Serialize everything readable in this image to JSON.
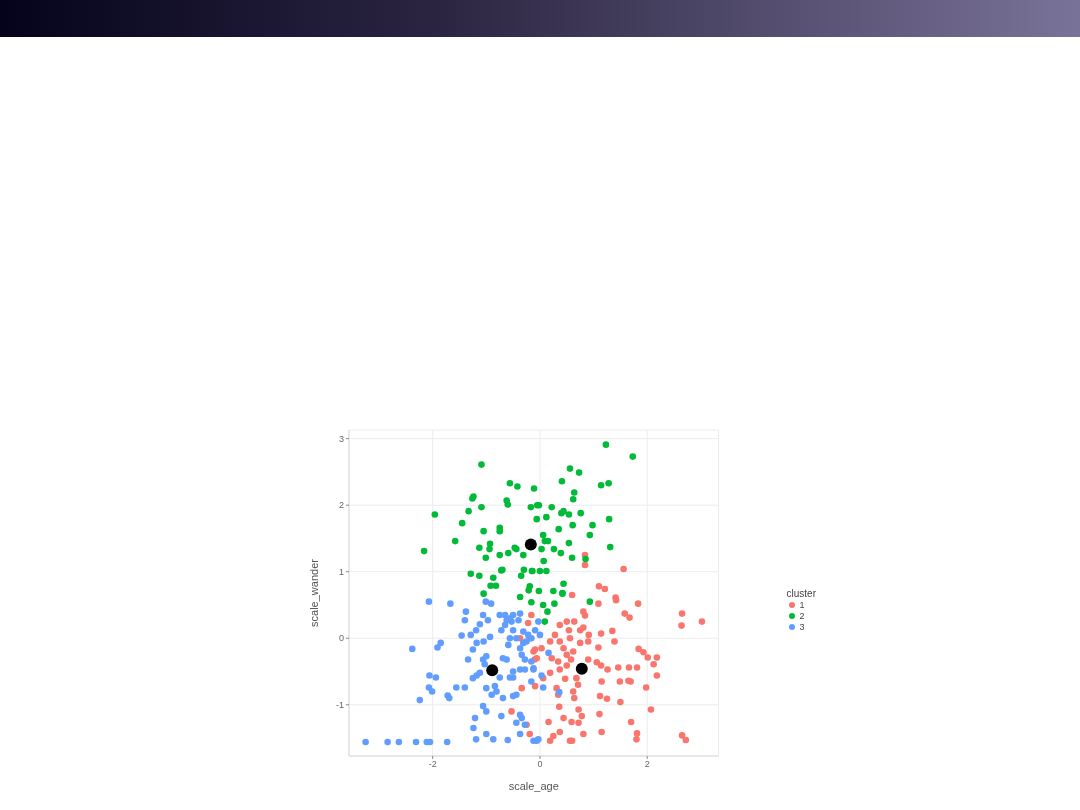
{
  "chart_data": {
    "type": "scatter",
    "xlabel": "scale_age",
    "ylabel": "scale_wander",
    "legend_title": "cluster",
    "legend": "right",
    "grid": true,
    "marker": "circle",
    "xlim": [
      -3.56,
      3.33
    ],
    "ylim": [
      -1.77,
      3.13
    ],
    "xticks": [
      -2,
      0,
      2
    ],
    "yticks": [
      -1,
      0,
      1,
      2,
      3
    ],
    "series": [
      {
        "name": "1",
        "color": "#f8766d",
        "x": [
          0.84,
          0.84,
          1.56,
          1.1,
          1.21,
          0.6,
          1.41,
          1.09,
          1.42,
          1.83,
          0.81,
          0.84,
          1.58,
          1.67,
          2.65,
          2.64,
          3.02,
          0.5,
          0.64,
          0.37,
          0.54,
          0.75,
          0.81,
          1.14,
          1.35,
          0.91,
          1.39,
          1.09,
          1.84,
          1.93,
          2.01,
          2.18,
          2.12,
          2.18,
          1.46,
          1.66,
          1.81,
          1.26,
          1.14,
          1.06,
          0.9,
          0.58,
          0.5,
          0.37,
          0.47,
          0.68,
          0.71,
          1.15,
          1.49,
          1.65,
          1.69,
          1.98,
          1.5,
          1.25,
          1.12,
          0.64,
          0.62,
          0.31,
          0.34,
          0.36,
          0.72,
          0.78,
          0.59,
          0.72,
          0.44,
          1.11,
          2.07,
          1.7,
          0.16,
          0.37,
          0.25,
          0.19,
          0.56,
          0.6,
          0.81,
          1.15,
          1.81,
          1.8,
          2.65,
          2.72,
          -0.12,
          -0.06,
          0.03,
          0.19,
          0.28,
          0.37,
          0.44,
          0.5,
          0.62,
          0.19,
          0.06,
          0.22,
          0.34,
          0.56,
          0.75,
          0.9,
          -0.16,
          -0.22,
          -0.37,
          -0.09,
          -0.1,
          -0.34,
          -0.09,
          -0.53,
          -0.25,
          -0.19
        ],
        "values": [
          1.25,
          1.1,
          1.04,
          0.78,
          0.74,
          0.65,
          0.61,
          0.52,
          0.57,
          0.52,
          0.4,
          0.34,
          0.37,
          0.31,
          0.37,
          0.19,
          0.25,
          0.25,
          0.25,
          0.2,
          0.12,
          0.12,
          0.16,
          0.07,
          0.11,
          0.05,
          -0.05,
          -0.14,
          -0.16,
          -0.21,
          -0.29,
          -0.29,
          -0.39,
          -0.56,
          -0.44,
          -0.44,
          -0.44,
          -0.47,
          -0.41,
          -0.36,
          -0.32,
          -0.32,
          -0.41,
          -0.47,
          -0.61,
          -0.6,
          -0.7,
          -0.65,
          -0.65,
          -0.64,
          -0.65,
          -0.74,
          -0.96,
          -0.91,
          -0.87,
          -0.9,
          -0.8,
          -0.75,
          -0.85,
          -1.03,
          -1.07,
          -1.17,
          -1.26,
          -1.27,
          -1.2,
          -1.14,
          -1.07,
          -1.26,
          -1.26,
          -1.41,
          -1.47,
          -1.54,
          -1.54,
          -1.54,
          -1.44,
          -1.41,
          -1.43,
          -1.52,
          -1.46,
          -1.53,
          -0.2,
          -0.3,
          -0.15,
          -0.05,
          0.05,
          -0.05,
          -0.15,
          -0.25,
          -0.2,
          -0.52,
          -0.6,
          -0.3,
          -0.35,
          0.0,
          -0.07,
          -0.05,
          0.35,
          0.23,
          0.0,
          -0.17,
          -0.32,
          -0.75,
          -0.72,
          -1.1,
          -1.3,
          -1.44
        ]
      },
      {
        "name": "2",
        "color": "#00ba38",
        "x": [
          -1.09,
          -1.96,
          -2.16,
          -1.58,
          -1.45,
          -1.33,
          -1.26,
          -1.24,
          -1.09,
          -1.05,
          -1.13,
          -1.01,
          -0.93,
          -0.94,
          -0.75,
          -0.75,
          -0.62,
          -0.6,
          -0.56,
          -0.42,
          -0.11,
          -0.17,
          -0.06,
          -0.05,
          -0.31,
          -0.47,
          -0.44,
          -0.59,
          -0.75,
          -0.72,
          -0.7,
          -0.87,
          -1.29,
          -1.13,
          -0.92,
          -0.82,
          -1.05,
          -0.3,
          -0.15,
          -0.35,
          -0.19,
          -0.21,
          -0.37,
          1.23,
          1.73,
          0.56,
          0.73,
          0.41,
          1.14,
          1.28,
          0.64,
          0.62,
          -0.02,
          0.22,
          0.44,
          0.4,
          0.54,
          0.76,
          0.12,
          0.61,
          0.98,
          1.29,
          0.35,
          0.93,
          0.06,
          0.09,
          0.15,
          0.03,
          0.26,
          0.39,
          0.54,
          0.6,
          1.31,
          0.85,
          0.07,
          -0.14,
          0.0,
          0.12,
          0.44,
          0.42,
          0.25,
          -0.02,
          0.42,
          -0.16,
          0.06,
          0.27,
          0.14,
          0.93,
          0.09
        ],
        "values": [
          2.61,
          1.86,
          1.31,
          1.46,
          1.73,
          1.91,
          2.1,
          2.13,
          1.97,
          1.61,
          1.36,
          1.21,
          1.42,
          1.34,
          1.66,
          1.61,
          2.07,
          2.01,
          2.33,
          2.28,
          2.25,
          1.97,
          1.79,
          2.0,
          1.25,
          1.36,
          1.34,
          1.28,
          1.25,
          1.02,
          1.03,
          0.91,
          0.97,
          0.94,
          0.79,
          0.79,
          0.67,
          1.03,
          1.01,
          0.94,
          0.78,
          0.72,
          0.62,
          2.91,
          2.73,
          2.55,
          2.49,
          2.36,
          2.3,
          2.33,
          2.19,
          2.09,
          2.0,
          1.97,
          1.91,
          1.88,
          1.86,
          1.88,
          1.82,
          1.7,
          1.7,
          1.79,
          1.64,
          1.55,
          1.55,
          1.46,
          1.46,
          1.34,
          1.34,
          1.28,
          1.43,
          1.21,
          1.37,
          1.19,
          1.16,
          1.01,
          1.01,
          1.01,
          0.82,
          0.68,
          0.71,
          0.71,
          0.67,
          0.54,
          0.5,
          0.52,
          0.4,
          0.55,
          0.25
        ]
      },
      {
        "name": "3",
        "color": "#619cff",
        "x": [
          -3.25,
          -2.84,
          -2.63,
          -2.31,
          -2.11,
          -2.05,
          -1.73,
          -2.24,
          -2.07,
          -2.01,
          -2.06,
          -1.94,
          -2.38,
          -1.91,
          -1.85,
          -2.07,
          -1.67,
          -1.38,
          -1.4,
          -1.46,
          -1.29,
          -1.19,
          -1.25,
          -1.34,
          -1.18,
          -1.05,
          -0.93,
          -1.06,
          -0.97,
          -1.01,
          -0.91,
          -1.12,
          -1.56,
          -1.4,
          -1.72,
          -1.69,
          -1.25,
          -1.18,
          -1.12,
          -1.0,
          -0.84,
          -0.81,
          -0.9,
          -0.69,
          -1.06,
          -1.0,
          -1.03,
          -0.75,
          -0.69,
          -0.62,
          -0.56,
          -0.5,
          -0.5,
          -0.37,
          -0.28,
          -1.06,
          -1.0,
          -1.21,
          -1.24,
          -1.0,
          -0.87,
          -0.72,
          -1.19,
          -0.6,
          -0.5,
          -0.44,
          -0.37,
          -0.34,
          -0.28,
          -0.44,
          -0.37,
          -0.12,
          -0.06,
          -0.72,
          -0.65,
          -0.62,
          -0.53,
          -0.4,
          -0.5,
          -0.56,
          -0.59,
          -0.44,
          -0.37,
          -0.34,
          -0.31,
          -0.25,
          -0.19,
          -0.28,
          -0.16,
          -0.12,
          -0.75,
          -0.65,
          -0.56,
          -0.5,
          -0.37,
          -0.31,
          -0.22,
          -0.03,
          -0.09,
          -0.16,
          0.0,
          0.16,
          -0.12,
          0.03,
          -0.16,
          0.06,
          0.36,
          -0.03
        ],
        "values": [
          -1.56,
          -1.56,
          -1.56,
          -1.56,
          -1.56,
          -1.56,
          -1.56,
          -0.93,
          -0.74,
          -0.8,
          -0.56,
          -0.59,
          -0.16,
          -0.14,
          -0.07,
          0.55,
          0.52,
          0.4,
          0.27,
          0.04,
          0.05,
          0.12,
          -0.17,
          -0.32,
          -0.07,
          -0.05,
          0.02,
          0.35,
          0.27,
          0.55,
          0.52,
          0.21,
          -0.74,
          -0.74,
          -0.86,
          -0.9,
          -0.6,
          -0.56,
          -0.52,
          -0.75,
          -0.72,
          -0.8,
          -0.85,
          -0.9,
          -0.32,
          -0.27,
          -0.39,
          -0.59,
          -0.3,
          -0.32,
          -0.59,
          -0.59,
          -0.5,
          -0.47,
          -0.47,
          -1.02,
          -1.1,
          -1.2,
          -1.35,
          -1.44,
          -1.52,
          -1.17,
          -1.52,
          -1.53,
          -0.87,
          -0.85,
          -1.15,
          -1.2,
          -1.3,
          -1.27,
          -1.44,
          -1.54,
          -1.54,
          0.12,
          0.2,
          0.27,
          0.25,
          0.27,
          0.12,
          0.0,
          -0.1,
          0.0,
          -0.15,
          -0.25,
          -0.07,
          -0.05,
          0.0,
          -0.32,
          -0.35,
          -0.45,
          0.35,
          0.35,
          0.3,
          0.35,
          0.37,
          0.1,
          0.05,
          0.25,
          0.12,
          0.0,
          0.05,
          -0.22,
          -0.47,
          -0.56,
          -0.65,
          -0.74,
          -0.81,
          -1.52
        ]
      },
      {
        "color": "#000000",
        "x": [
          0.78,
          -0.17,
          -0.89
        ],
        "values": [
          -0.46,
          1.41,
          -0.48
        ]
      }
    ]
  }
}
